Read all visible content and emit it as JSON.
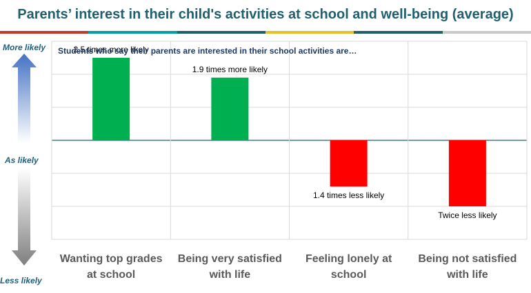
{
  "header": {
    "title": "Parents’ interest in their child's activities at school and well-being (average)",
    "rule_colors": [
      "#c0392b",
      "#00a0a0",
      "#1f5f6e",
      "#e6c229",
      "#1f5f6e",
      "#c9c9c9"
    ]
  },
  "colors": {
    "positive": "#00b050",
    "negative": "#ff0000",
    "baseline": "#1f5f6e",
    "grid": "#d9d9d9",
    "arrow_up": "#4472c4",
    "arrow_down": "#7f7f7f"
  },
  "chart_data": {
    "type": "bar",
    "title": "",
    "subtitle": "Students who say their parents are interested in their school activities are…",
    "y_axis_labels": {
      "top": "More likely",
      "middle": "As likely",
      "bottom": "Less  likely"
    },
    "categories": [
      [
        "Wanting top grades",
        "at school"
      ],
      [
        "Being very satisfied",
        "with life"
      ],
      [
        "Feeling lonely at",
        "school"
      ],
      [
        "Being not satisfied",
        "with life"
      ]
    ],
    "values": [
      2.5,
      1.9,
      -1.4,
      -2.0
    ],
    "data_labels": [
      "2.5 times more likely",
      "1.9 times more likely",
      "1.4 times less likely",
      "Twice less likely"
    ],
    "ylim": [
      -3,
      3
    ],
    "grid": true
  }
}
